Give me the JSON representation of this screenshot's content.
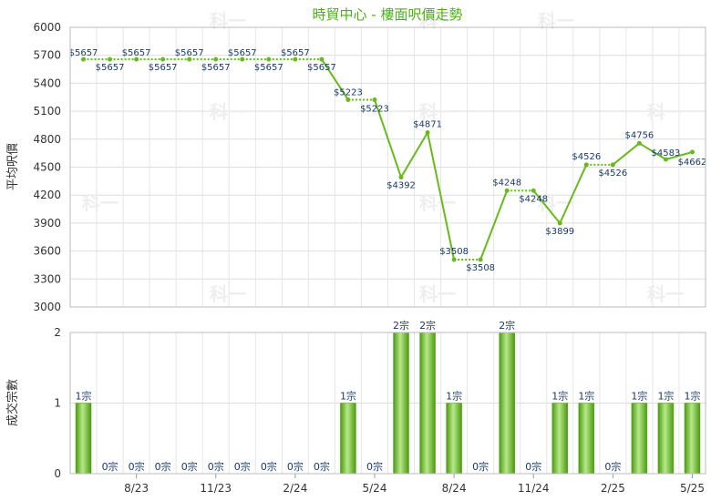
{
  "chart_data": [
    {
      "type": "line",
      "title": "時貿中心 - 樓面呎價走勢",
      "ylabel": "平均呎價",
      "ylim": [
        3000,
        6000
      ],
      "yticks": [
        3000,
        3300,
        3600,
        3900,
        4200,
        4500,
        4800,
        5100,
        5400,
        5700,
        6000
      ],
      "x_tick_labels": [
        "8/23",
        "11/23",
        "2/24",
        "5/24",
        "8/24",
        "11/24",
        "2/25",
        "5/25"
      ],
      "values": [
        5657,
        5657,
        5657,
        5657,
        5657,
        5657,
        5657,
        5657,
        5657,
        5657,
        5223,
        5223,
        4392,
        4871,
        3508,
        3508,
        4248,
        4248,
        3899,
        4526,
        4526,
        4756,
        4583,
        4662
      ],
      "point_labels": [
        "$5657",
        "$5657",
        "$5657",
        "$5657",
        "$5657",
        "$5657",
        "$5657",
        "$5657",
        "$5657",
        "$5657",
        "$5223",
        "$5223",
        "$4392",
        "$4871",
        "$3508",
        "$3508",
        "$4248",
        "$4248",
        "$3899",
        "$4526",
        "$4526",
        "$4756",
        "$4583",
        "$4662"
      ],
      "carried_forward": [
        false,
        true,
        true,
        true,
        true,
        true,
        true,
        true,
        true,
        true,
        false,
        true,
        false,
        false,
        false,
        true,
        false,
        true,
        false,
        false,
        true,
        false,
        false,
        false
      ],
      "color": "#66bb1a",
      "grid": true
    },
    {
      "type": "bar",
      "ylabel": "成交宗數",
      "ylim": [
        0,
        2
      ],
      "yticks": [
        0,
        1,
        2
      ],
      "x_tick_labels": [
        "8/23",
        "11/23",
        "2/24",
        "5/24",
        "8/24",
        "11/24",
        "2/25",
        "5/25"
      ],
      "values": [
        1,
        0,
        0,
        0,
        0,
        0,
        0,
        0,
        0,
        0,
        1,
        0,
        2,
        2,
        1,
        0,
        2,
        0,
        1,
        1,
        0,
        1,
        1,
        1
      ],
      "bar_labels": [
        "1宗",
        "0宗",
        "0宗",
        "0宗",
        "0宗",
        "0宗",
        "0宗",
        "0宗",
        "0宗",
        "0宗",
        "1宗",
        "0宗",
        "2宗",
        "2宗",
        "1宗",
        "0宗",
        "2宗",
        "0宗",
        "1宗",
        "1宗",
        "0宗",
        "1宗",
        "1宗",
        "1宗"
      ],
      "color": "#66bb1a",
      "grid": true
    }
  ],
  "watermark": "科一"
}
